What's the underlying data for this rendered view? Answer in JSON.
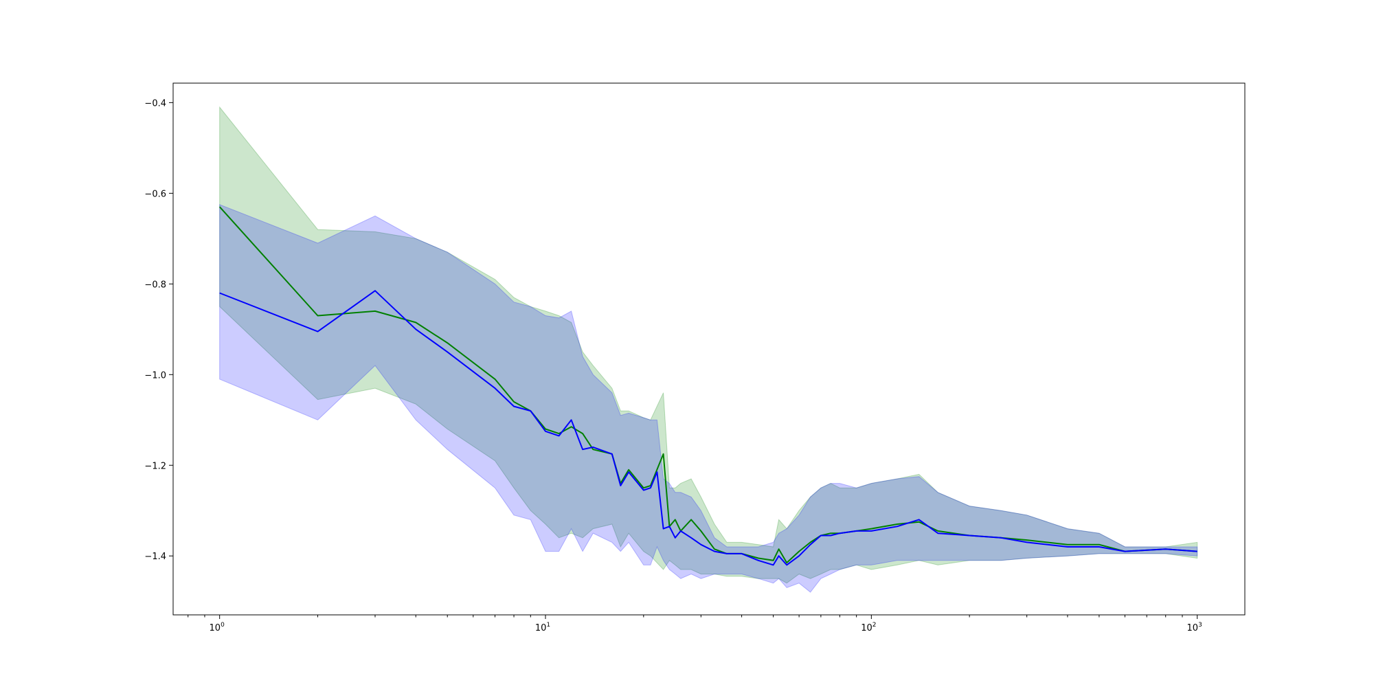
{
  "chart_data": {
    "type": "line",
    "title": "",
    "xlabel": "",
    "ylabel": "",
    "xscale": "log",
    "xlim": [
      0.72,
      1400
    ],
    "ylim": [
      -1.53,
      -0.357
    ],
    "grid": false,
    "legend": "none",
    "x_ticks": [
      {
        "value": 1,
        "base": "10",
        "exp": "0"
      },
      {
        "value": 10,
        "base": "10",
        "exp": "1"
      },
      {
        "value": 100,
        "base": "10",
        "exp": "2"
      },
      {
        "value": 1000,
        "base": "10",
        "exp": "3"
      }
    ],
    "y_ticks": [
      {
        "value": -0.4,
        "label": "−0.4"
      },
      {
        "value": -0.6,
        "label": "−0.6"
      },
      {
        "value": -0.8,
        "label": "−0.8"
      },
      {
        "value": -1.0,
        "label": "−1.0"
      },
      {
        "value": -1.2,
        "label": "−1.2"
      },
      {
        "value": -1.4,
        "label": "−1.4"
      }
    ],
    "series": [
      {
        "color": "#008000",
        "band_color": "#008000",
        "band_opacity": 0.2,
        "x": [
          1,
          2,
          3,
          4,
          5,
          7,
          8,
          9,
          10,
          11,
          12,
          13,
          14,
          16,
          17,
          18,
          20,
          21,
          23,
          24,
          25,
          26,
          28,
          30,
          33,
          36,
          40,
          45,
          50,
          52,
          55,
          60,
          65,
          70,
          75,
          80,
          90,
          100,
          120,
          140,
          160,
          200,
          250,
          300,
          400,
          500,
          600,
          800,
          1000
        ],
        "y": [
          -0.63,
          -0.87,
          -0.86,
          -0.885,
          -0.93,
          -1.01,
          -1.06,
          -1.08,
          -1.12,
          -1.13,
          -1.115,
          -1.13,
          -1.165,
          -1.175,
          -1.24,
          -1.21,
          -1.25,
          -1.245,
          -1.175,
          -1.335,
          -1.32,
          -1.345,
          -1.32,
          -1.345,
          -1.385,
          -1.395,
          -1.395,
          -1.405,
          -1.41,
          -1.385,
          -1.415,
          -1.39,
          -1.37,
          -1.355,
          -1.35,
          -1.35,
          -1.345,
          -1.34,
          -1.33,
          -1.325,
          -1.345,
          -1.355,
          -1.36,
          -1.365,
          -1.375,
          -1.375,
          -1.39,
          -1.385,
          -1.39
        ],
        "upper": [
          -0.41,
          -0.68,
          -0.685,
          -0.7,
          -0.73,
          -0.79,
          -0.83,
          -0.85,
          -0.86,
          -0.87,
          -0.885,
          -0.95,
          -0.98,
          -1.03,
          -1.08,
          -1.08,
          -1.095,
          -1.1,
          -1.04,
          -1.25,
          -1.25,
          -1.24,
          -1.23,
          -1.27,
          -1.33,
          -1.37,
          -1.37,
          -1.375,
          -1.38,
          -1.32,
          -1.34,
          -1.3,
          -1.27,
          -1.25,
          -1.24,
          -1.25,
          -1.25,
          -1.24,
          -1.23,
          -1.22,
          -1.26,
          -1.29,
          -1.3,
          -1.31,
          -1.34,
          -1.35,
          -1.38,
          -1.38,
          -1.37
        ],
        "lower": [
          -0.85,
          -1.055,
          -1.03,
          -1.065,
          -1.12,
          -1.19,
          -1.25,
          -1.3,
          -1.33,
          -1.36,
          -1.35,
          -1.36,
          -1.34,
          -1.33,
          -1.38,
          -1.35,
          -1.39,
          -1.4,
          -1.43,
          -1.41,
          -1.42,
          -1.43,
          -1.43,
          -1.44,
          -1.44,
          -1.445,
          -1.445,
          -1.45,
          -1.45,
          -1.45,
          -1.46,
          -1.44,
          -1.45,
          -1.44,
          -1.43,
          -1.43,
          -1.42,
          -1.43,
          -1.42,
          -1.41,
          -1.42,
          -1.41,
          -1.41,
          -1.405,
          -1.4,
          -1.395,
          -1.395,
          -1.395,
          -1.405
        ]
      },
      {
        "color": "#0000ff",
        "band_color": "#0000ff",
        "band_opacity": 0.2,
        "x": [
          1,
          2,
          3,
          4,
          5,
          7,
          8,
          9,
          10,
          11,
          12,
          13,
          14,
          16,
          17,
          18,
          20,
          21,
          22,
          23,
          24,
          25,
          26,
          28,
          30,
          33,
          36,
          40,
          45,
          50,
          52,
          55,
          60,
          65,
          70,
          75,
          80,
          90,
          100,
          120,
          140,
          160,
          200,
          250,
          300,
          400,
          500,
          600,
          800,
          1000
        ],
        "y": [
          -0.82,
          -0.905,
          -0.815,
          -0.9,
          -0.95,
          -1.03,
          -1.07,
          -1.08,
          -1.125,
          -1.135,
          -1.1,
          -1.165,
          -1.16,
          -1.175,
          -1.245,
          -1.215,
          -1.255,
          -1.25,
          -1.215,
          -1.34,
          -1.335,
          -1.36,
          -1.345,
          -1.36,
          -1.375,
          -1.39,
          -1.395,
          -1.395,
          -1.41,
          -1.42,
          -1.4,
          -1.42,
          -1.4,
          -1.375,
          -1.355,
          -1.355,
          -1.35,
          -1.345,
          -1.345,
          -1.335,
          -1.32,
          -1.35,
          -1.355,
          -1.36,
          -1.37,
          -1.38,
          -1.38,
          -1.39,
          -1.385,
          -1.39
        ],
        "upper": [
          -0.625,
          -0.71,
          -0.65,
          -0.7,
          -0.73,
          -0.8,
          -0.84,
          -0.85,
          -0.87,
          -0.875,
          -0.86,
          -0.96,
          -1.0,
          -1.04,
          -1.09,
          -1.085,
          -1.095,
          -1.1,
          -1.1,
          -1.23,
          -1.24,
          -1.26,
          -1.26,
          -1.27,
          -1.3,
          -1.36,
          -1.38,
          -1.38,
          -1.38,
          -1.37,
          -1.35,
          -1.34,
          -1.31,
          -1.27,
          -1.25,
          -1.24,
          -1.24,
          -1.25,
          -1.24,
          -1.23,
          -1.225,
          -1.26,
          -1.29,
          -1.3,
          -1.31,
          -1.34,
          -1.35,
          -1.38,
          -1.38,
          -1.38
        ],
        "lower": [
          -1.01,
          -1.1,
          -0.98,
          -1.1,
          -1.165,
          -1.25,
          -1.31,
          -1.32,
          -1.39,
          -1.39,
          -1.34,
          -1.39,
          -1.35,
          -1.37,
          -1.39,
          -1.37,
          -1.42,
          -1.42,
          -1.38,
          -1.41,
          -1.43,
          -1.44,
          -1.45,
          -1.44,
          -1.45,
          -1.44,
          -1.44,
          -1.44,
          -1.45,
          -1.46,
          -1.45,
          -1.47,
          -1.46,
          -1.48,
          -1.45,
          -1.44,
          -1.43,
          -1.42,
          -1.42,
          -1.41,
          -1.41,
          -1.41,
          -1.41,
          -1.41,
          -1.405,
          -1.4,
          -1.395,
          -1.395,
          -1.395,
          -1.4
        ]
      }
    ]
  }
}
